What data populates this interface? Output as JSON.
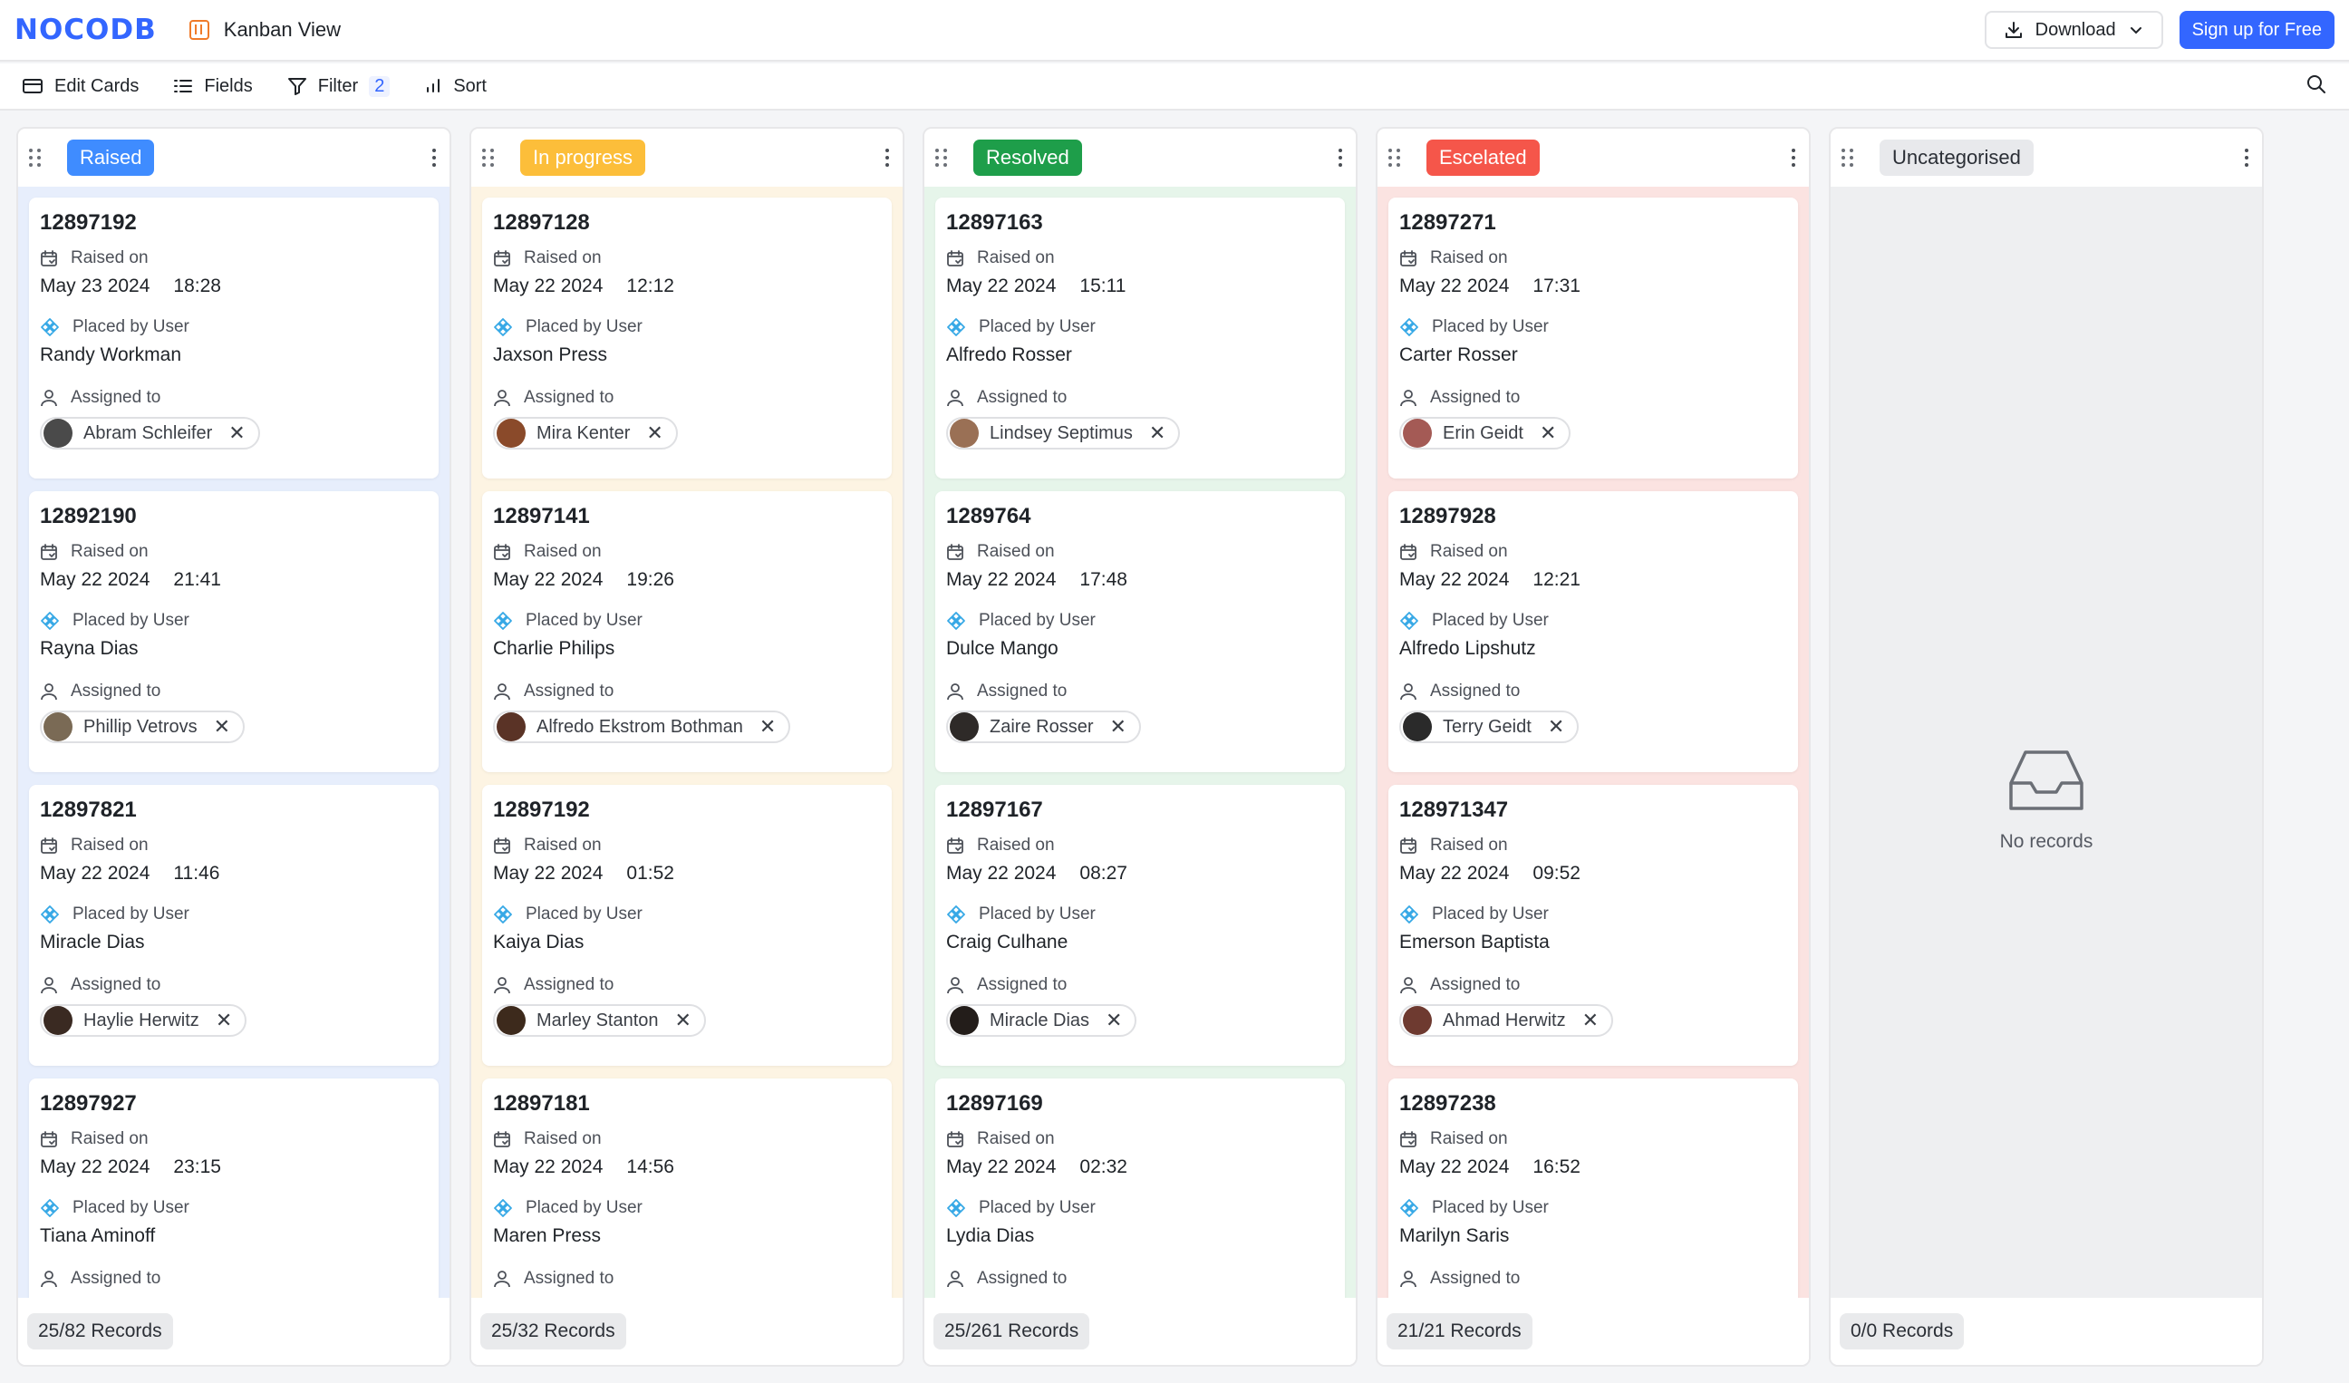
{
  "app": {
    "logo": "NOCODB",
    "view_title": "Kanban View"
  },
  "header": {
    "download_label": "Download",
    "signup_label": "Sign up for Free"
  },
  "toolbar": {
    "edit_cards": "Edit Cards",
    "fields": "Fields",
    "filter": "Filter",
    "filter_count": "2",
    "sort": "Sort"
  },
  "labels": {
    "raised_on": "Raised on",
    "placed_by": "Placed by User",
    "assigned_to": "Assigned to",
    "no_records": "No records"
  },
  "colors": {
    "accent": "#3366ff",
    "raised": "#3f8cff",
    "in_progress": "#fcbe3a",
    "resolved": "#1e9e4a",
    "escalated": "#f5564a",
    "uncategorised": "#e8e9ec"
  },
  "columns": [
    {
      "title": "Raised",
      "badge_bg": "#3f8cff",
      "badge_fg": "#ffffff",
      "tint": "#e7eefc",
      "records": "25/82 Records",
      "cards": [
        {
          "id": "12897192",
          "date": "May 23 2024",
          "time": "18:28",
          "user": "Randy Workman",
          "assignee": "Abram Schleifer",
          "avatar": "#4a4a4a"
        },
        {
          "id": "12892190",
          "date": "May 22 2024",
          "time": "21:41",
          "user": "Rayna Dias",
          "assignee": "Phillip Vetrovs",
          "avatar": "#7a6a55"
        },
        {
          "id": "12897821",
          "date": "May 22 2024",
          "time": "11:46",
          "user": "Miracle Dias",
          "assignee": "Haylie Herwitz",
          "avatar": "#3a2a22"
        },
        {
          "id": "12897927",
          "date": "May 22 2024",
          "time": "23:15",
          "user": "Tiana Aminoff",
          "assignee": "",
          "avatar": ""
        }
      ]
    },
    {
      "title": "In progress",
      "badge_bg": "#fcbe3a",
      "badge_fg": "#ffffff",
      "tint": "#fdf4e3",
      "records": "25/32 Records",
      "cards": [
        {
          "id": "12897128",
          "date": "May 22 2024",
          "time": "12:12",
          "user": "Jaxson Press",
          "assignee": "Mira Kenter",
          "avatar": "#8a4a2a"
        },
        {
          "id": "12897141",
          "date": "May 22 2024",
          "time": "19:26",
          "user": "Charlie Philips",
          "assignee": "Alfredo Ekstrom Bothman",
          "avatar": "#5a3326"
        },
        {
          "id": "12897192",
          "date": "May 22 2024",
          "time": "01:52",
          "user": "Kaiya Dias",
          "assignee": "Marley Stanton",
          "avatar": "#3d2a1c"
        },
        {
          "id": "12897181",
          "date": "May 22 2024",
          "time": "14:56",
          "user": "Maren Press",
          "assignee": "",
          "avatar": ""
        }
      ]
    },
    {
      "title": "Resolved",
      "badge_bg": "#1e9e4a",
      "badge_fg": "#ffffff",
      "tint": "#e6f5ea",
      "records": "25/261 Records",
      "cards": [
        {
          "id": "12897163",
          "date": "May 22 2024",
          "time": "15:11",
          "user": "Alfredo Rosser",
          "assignee": "Lindsey Septimus",
          "avatar": "#9a7055"
        },
        {
          "id": "1289764",
          "date": "May 22 2024",
          "time": "17:48",
          "user": "Dulce Mango",
          "assignee": "Zaire Rosser",
          "avatar": "#2e2a28"
        },
        {
          "id": "12897167",
          "date": "May 22 2024",
          "time": "08:27",
          "user": "Craig Culhane",
          "assignee": "Miracle Dias",
          "avatar": "#231d1a"
        },
        {
          "id": "12897169",
          "date": "May 22 2024",
          "time": "02:32",
          "user": "Lydia Dias",
          "assignee": "",
          "avatar": ""
        }
      ]
    },
    {
      "title": "Escelated",
      "badge_bg": "#f5564a",
      "badge_fg": "#ffffff",
      "tint": "#fbe3e1",
      "records": "21/21 Records",
      "cards": [
        {
          "id": "12897271",
          "date": "May 22 2024",
          "time": "17:31",
          "user": "Carter Rosser",
          "assignee": "Erin Geidt",
          "avatar": "#a45a55"
        },
        {
          "id": "12897928",
          "date": "May 22 2024",
          "time": "12:21",
          "user": "Alfredo Lipshutz",
          "assignee": "Terry Geidt",
          "avatar": "#2a2a2a"
        },
        {
          "id": "128971347",
          "date": "May 22 2024",
          "time": "09:52",
          "user": "Emerson Baptista",
          "assignee": "Ahmad Herwitz",
          "avatar": "#6e3a30"
        },
        {
          "id": "12897238",
          "date": "May 22 2024",
          "time": "16:52",
          "user": "Marilyn Saris",
          "assignee": "",
          "avatar": ""
        }
      ]
    },
    {
      "title": "Uncategorised",
      "badge_bg": "#e8e9ec",
      "badge_fg": "#2b2f36",
      "tint": "#eeeff1",
      "records": "0/0 Records",
      "cards": []
    }
  ]
}
